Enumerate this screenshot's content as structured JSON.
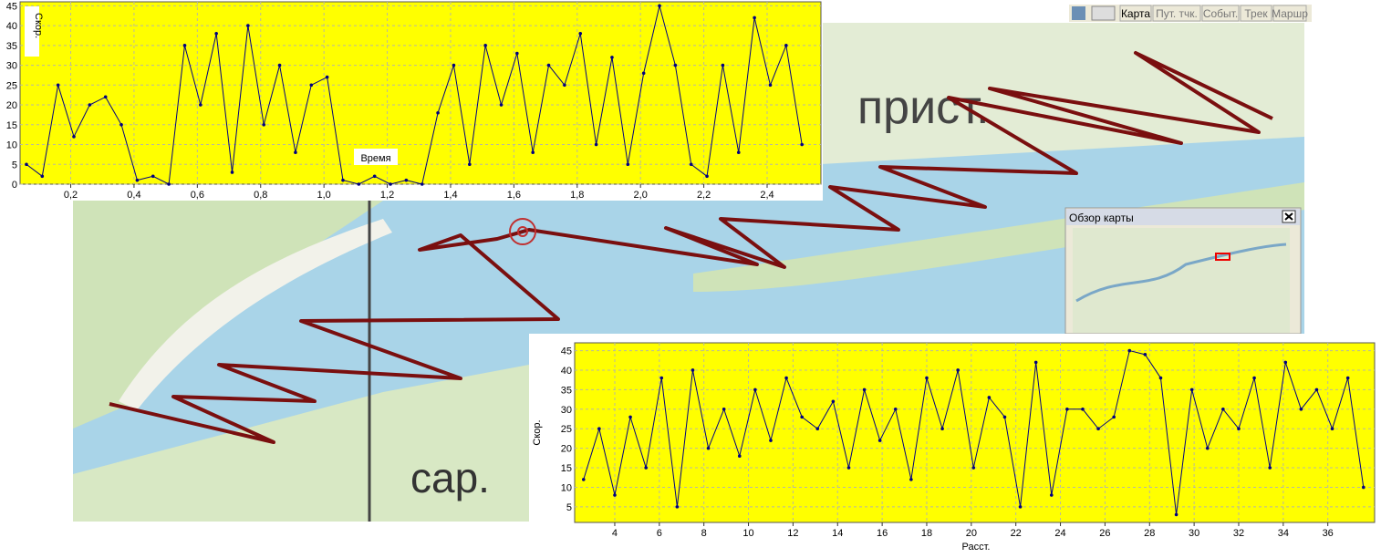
{
  "toolbar": {
    "buttons": [
      "Карта",
      "Пут. тчк.",
      "Событ.",
      "Трек",
      "Маршр"
    ]
  },
  "overview": {
    "title": "Обзор карты"
  },
  "map_labels": [
    "прист.",
    "сар."
  ],
  "chart_data": [
    {
      "type": "line",
      "y_label": "Скор.",
      "x_label": "Время",
      "background": "#ffff00",
      "grid": true,
      "series": [
        {
          "color": "#000080",
          "x": [
            0.06,
            0.11,
            0.16,
            0.21,
            0.26,
            0.31,
            0.36,
            0.41,
            0.46,
            0.51,
            0.56,
            0.61,
            0.66,
            0.71,
            0.76,
            0.81,
            0.86,
            0.91,
            0.96,
            1.01,
            1.06,
            1.11,
            1.16,
            1.21,
            1.26,
            1.31,
            1.36,
            1.41,
            1.46,
            1.51,
            1.56,
            1.61,
            1.66,
            1.71,
            1.76,
            1.81,
            1.86,
            1.91,
            1.96,
            2.01,
            2.06,
            2.11,
            2.16,
            2.21,
            2.26,
            2.31,
            2.36,
            2.41,
            2.46,
            2.51
          ],
          "values": [
            5,
            2,
            25,
            12,
            20,
            22,
            15,
            1,
            2,
            0,
            35,
            20,
            38,
            3,
            40,
            15,
            30,
            8,
            25,
            27,
            1,
            0,
            2,
            0,
            1,
            0,
            18,
            30,
            5,
            35,
            20,
            33,
            8,
            30,
            25,
            38,
            10,
            32,
            5,
            28,
            45,
            30,
            5,
            2,
            30,
            8,
            42,
            25,
            35,
            10
          ]
        }
      ],
      "xlim": [
        0.04,
        2.57
      ],
      "ylim": [
        0,
        46
      ],
      "xticks": [
        {
          "value": 0.2,
          "label": "0,2"
        },
        {
          "value": 0.4,
          "label": "0,4"
        },
        {
          "value": 0.6,
          "label": "0,6"
        },
        {
          "value": 0.8,
          "label": "0,8"
        },
        {
          "value": 1.0,
          "label": "1,0"
        },
        {
          "value": 1.2,
          "label": "1,2"
        },
        {
          "value": 1.4,
          "label": "1,4"
        },
        {
          "value": 1.6,
          "label": "1,6"
        },
        {
          "value": 1.8,
          "label": "1,8"
        },
        {
          "value": 2.0,
          "label": "2,0"
        },
        {
          "value": 2.2,
          "label": "2,2"
        },
        {
          "value": 2.4,
          "label": "2,4"
        }
      ],
      "yticks": [
        0,
        5,
        10,
        15,
        20,
        25,
        30,
        35,
        40,
        45
      ]
    },
    {
      "type": "line",
      "y_label": "Скор.",
      "x_label": "Расст.",
      "background": "#ffff00",
      "grid": true,
      "series": [
        {
          "color": "#000080",
          "x": [
            2.6,
            3.3,
            4.0,
            4.7,
            5.4,
            6.1,
            6.8,
            7.5,
            8.2,
            8.9,
            9.6,
            10.3,
            11.0,
            11.7,
            12.4,
            13.1,
            13.8,
            14.5,
            15.2,
            15.9,
            16.6,
            17.3,
            18.0,
            18.7,
            19.4,
            20.1,
            20.8,
            21.5,
            22.2,
            22.9,
            23.6,
            24.3,
            25.0,
            25.7,
            26.4,
            27.1,
            27.8,
            28.5,
            29.2,
            29.9,
            30.6,
            31.3,
            32.0,
            32.7,
            33.4,
            34.1,
            34.8,
            35.5,
            36.2,
            36.9,
            37.6
          ],
          "values": [
            12,
            25,
            8,
            28,
            15,
            38,
            5,
            40,
            20,
            30,
            18,
            35,
            22,
            38,
            28,
            25,
            32,
            15,
            35,
            22,
            30,
            12,
            38,
            25,
            40,
            15,
            33,
            28,
            5,
            42,
            8,
            30,
            30,
            25,
            28,
            45,
            44,
            38,
            3,
            35,
            20,
            30,
            25,
            38,
            15,
            42,
            30,
            35,
            25,
            38,
            10
          ]
        }
      ],
      "xlim": [
        2.2,
        38.1
      ],
      "ylim": [
        1,
        47
      ],
      "xticks": [
        4,
        6,
        8,
        10,
        12,
        14,
        16,
        18,
        20,
        22,
        24,
        26,
        28,
        30,
        32,
        34,
        36
      ],
      "yticks": [
        5,
        10,
        15,
        20,
        25,
        30,
        35,
        40,
        45
      ]
    }
  ]
}
